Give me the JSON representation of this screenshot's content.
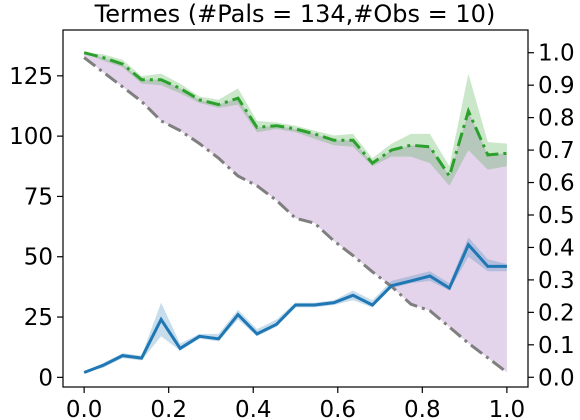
{
  "chart_data": {
    "type": "line",
    "title": "Termes (#Pals = 134,#Obs = 10)",
    "xlabel": "",
    "ylabel": "",
    "y2label": "",
    "grid": false,
    "xlim": [
      -0.05,
      1.05
    ],
    "ylim": [
      -4,
      144
    ],
    "y2lim": [
      -0.03,
      1.07
    ],
    "xticks": [
      0.0,
      0.2,
      0.4,
      0.6,
      0.8,
      1.0
    ],
    "xtick_labels": [
      "0.0",
      "0.2",
      "0.4",
      "0.6",
      "0.8",
      "1.0"
    ],
    "yticks": [
      0,
      25,
      50,
      75,
      100,
      125
    ],
    "ytick_labels": [
      "0",
      "25",
      "50",
      "75",
      "100",
      "125"
    ],
    "y2ticks": [
      0.0,
      0.1,
      0.2,
      0.3,
      0.4,
      0.5,
      0.6,
      0.7,
      0.8,
      0.9,
      1.0
    ],
    "y2tick_labels": [
      "0.0",
      "0.1",
      "0.2",
      "0.3",
      "0.4",
      "0.5",
      "0.6",
      "0.7",
      "0.8",
      "0.9",
      "1.0"
    ],
    "x": [
      0.0,
      0.045,
      0.091,
      0.136,
      0.182,
      0.227,
      0.273,
      0.318,
      0.364,
      0.409,
      0.455,
      0.5,
      0.545,
      0.591,
      0.636,
      0.682,
      0.727,
      0.773,
      0.818,
      0.864,
      0.909,
      0.955,
      1.0
    ],
    "series": [
      {
        "axis": "right",
        "color": "#2ca02c",
        "style": "dashdot",
        "values": [
          1.0,
          0.985,
          0.965,
          0.917,
          0.917,
          0.89,
          0.855,
          0.84,
          0.86,
          0.77,
          0.775,
          0.765,
          0.75,
          0.73,
          0.73,
          0.66,
          0.7,
          0.715,
          0.71,
          0.62,
          0.82,
          0.685,
          0.69
        ],
        "band_low": [
          1.0,
          0.975,
          0.955,
          0.905,
          0.9,
          0.875,
          0.845,
          0.83,
          0.84,
          0.755,
          0.765,
          0.755,
          0.735,
          0.715,
          0.71,
          0.65,
          0.68,
          0.68,
          0.66,
          0.59,
          0.7,
          0.64,
          0.65
        ],
        "band_high": [
          1.0,
          0.995,
          0.978,
          0.928,
          0.935,
          0.905,
          0.865,
          0.855,
          0.89,
          0.79,
          0.785,
          0.775,
          0.76,
          0.745,
          0.75,
          0.675,
          0.72,
          0.75,
          0.75,
          0.65,
          0.935,
          0.725,
          0.72
        ]
      },
      {
        "axis": "right",
        "color": "#7f7f7f",
        "style": "dashdot",
        "values": [
          0.985,
          0.94,
          0.895,
          0.85,
          0.79,
          0.76,
          0.72,
          0.675,
          0.62,
          0.59,
          0.545,
          0.49,
          0.475,
          0.42,
          0.375,
          0.325,
          0.28,
          0.225,
          0.205,
          0.155,
          0.105,
          0.06,
          0.015
        ]
      },
      {
        "axis": "left",
        "color": "#1f77b4",
        "style": "solid",
        "values": [
          2,
          5,
          9,
          8,
          24,
          12,
          17,
          16,
          26,
          18,
          22,
          30,
          30,
          31,
          34,
          30,
          38,
          40,
          42,
          37,
          55,
          46,
          46
        ],
        "band_low": [
          2,
          4,
          8,
          7,
          17,
          11,
          16,
          15,
          24,
          17,
          21,
          29,
          29,
          30,
          32,
          29,
          37,
          39,
          40,
          36,
          50,
          44,
          44
        ],
        "band_high": [
          2,
          6,
          10,
          9,
          31,
          14,
          18,
          18,
          28,
          20,
          24,
          31,
          31,
          32,
          36,
          32,
          40,
          42,
          44,
          39,
          58,
          49,
          47
        ]
      }
    ],
    "fill_between": {
      "axis": "right",
      "color": "#e4d4eb",
      "upper": "series.0.values",
      "lower": "series.1.values"
    }
  }
}
